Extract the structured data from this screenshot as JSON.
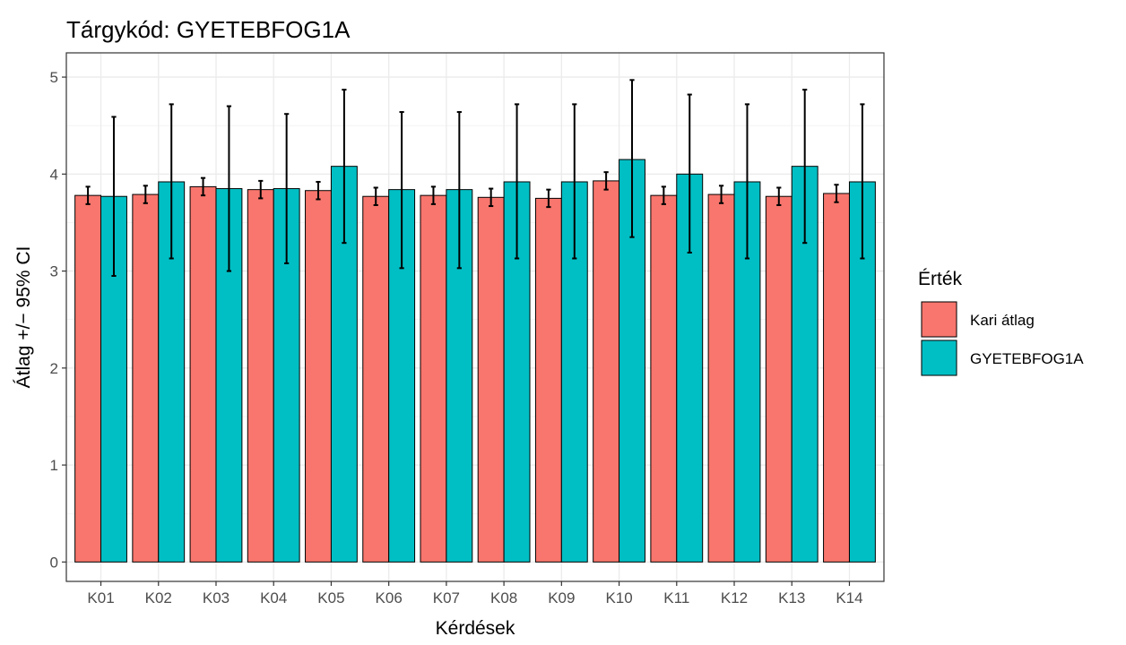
{
  "chart_data": {
    "type": "bar",
    "title": "Tárgykód:  GYETEBFOG1A",
    "xlabel": "Kérdések",
    "ylabel": "Átlag +/− 95% CI",
    "categories": [
      "K01",
      "K02",
      "K03",
      "K04",
      "K05",
      "K06",
      "K07",
      "K08",
      "K09",
      "K10",
      "K11",
      "K12",
      "K13",
      "K14"
    ],
    "ylim": [
      -0.2,
      5.25
    ],
    "yticks": [
      0,
      1,
      2,
      3,
      4,
      5
    ],
    "ytick_labels": [
      "0",
      "1",
      "2",
      "3",
      "4",
      "5"
    ],
    "grid": true,
    "legend_position": "right",
    "legend_title": "Érték",
    "series": [
      {
        "name": "Kari átlag",
        "color": "#F8766D",
        "values": [
          3.78,
          3.79,
          3.87,
          3.84,
          3.83,
          3.77,
          3.78,
          3.76,
          3.75,
          3.93,
          3.78,
          3.79,
          3.77,
          3.8
        ],
        "ci_lower": [
          3.69,
          3.7,
          3.78,
          3.75,
          3.74,
          3.68,
          3.69,
          3.67,
          3.66,
          3.84,
          3.69,
          3.7,
          3.68,
          3.71
        ],
        "ci_upper": [
          3.87,
          3.88,
          3.96,
          3.93,
          3.92,
          3.86,
          3.87,
          3.85,
          3.84,
          4.02,
          3.87,
          3.88,
          3.86,
          3.89
        ]
      },
      {
        "name": "GYETEBFOG1A",
        "color": "#00BFC4",
        "values": [
          3.77,
          3.92,
          3.85,
          3.85,
          4.08,
          3.84,
          3.84,
          3.92,
          3.92,
          4.15,
          4.0,
          3.92,
          4.08,
          3.92
        ],
        "ci_lower": [
          2.95,
          3.13,
          3.0,
          3.08,
          3.29,
          3.03,
          3.03,
          3.13,
          3.13,
          3.35,
          3.19,
          3.13,
          3.29,
          3.13
        ],
        "ci_upper": [
          4.59,
          4.72,
          4.7,
          4.62,
          4.87,
          4.64,
          4.64,
          4.72,
          4.72,
          4.97,
          4.82,
          4.72,
          4.87,
          4.72
        ]
      }
    ]
  }
}
